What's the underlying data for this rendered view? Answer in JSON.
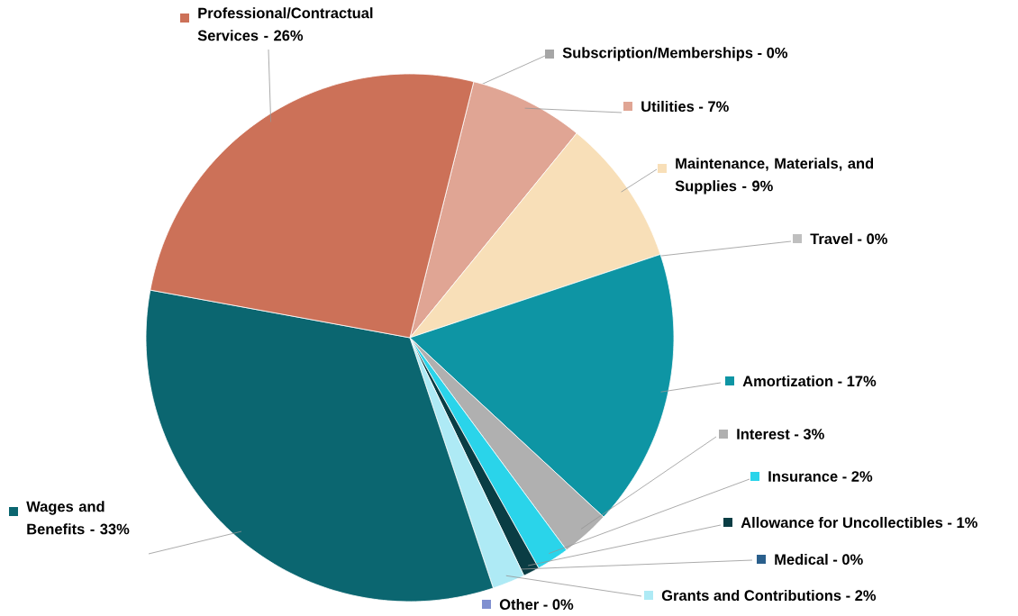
{
  "chart_data": {
    "type": "pie",
    "categories": [
      "Subscription/Memberships - 0%",
      "Utilities - 7%",
      "Maintenance, Materials, and Supplies - 9%",
      "Travel - 0%",
      "Amortization - 17%",
      "Interest - 3%",
      "Insurance - 2%",
      "Allowance for Uncollectibles - 1%",
      "Medical - 0%",
      "Grants and Contributions - 2%",
      "Other - 0%",
      "Wages and Benefits - 33%",
      "Professional/Contractual Services - 26%"
    ],
    "legend": "right",
    "values": [
      0,
      7,
      9,
      0,
      17,
      3,
      2,
      1,
      0,
      2,
      0,
      33,
      26
    ],
    "colors": [
      "#a6a6a6",
      "#e0a594",
      "#f8dfb8",
      "#bfbfbf",
      "#0e95a4",
      "#b0b0b0",
      "#2ad4ea",
      "#0a3d44",
      "#2a5f8c",
      "#aeeaf5",
      "#8090d0",
      "#0b6670",
      "#cc7158"
    ]
  }
}
